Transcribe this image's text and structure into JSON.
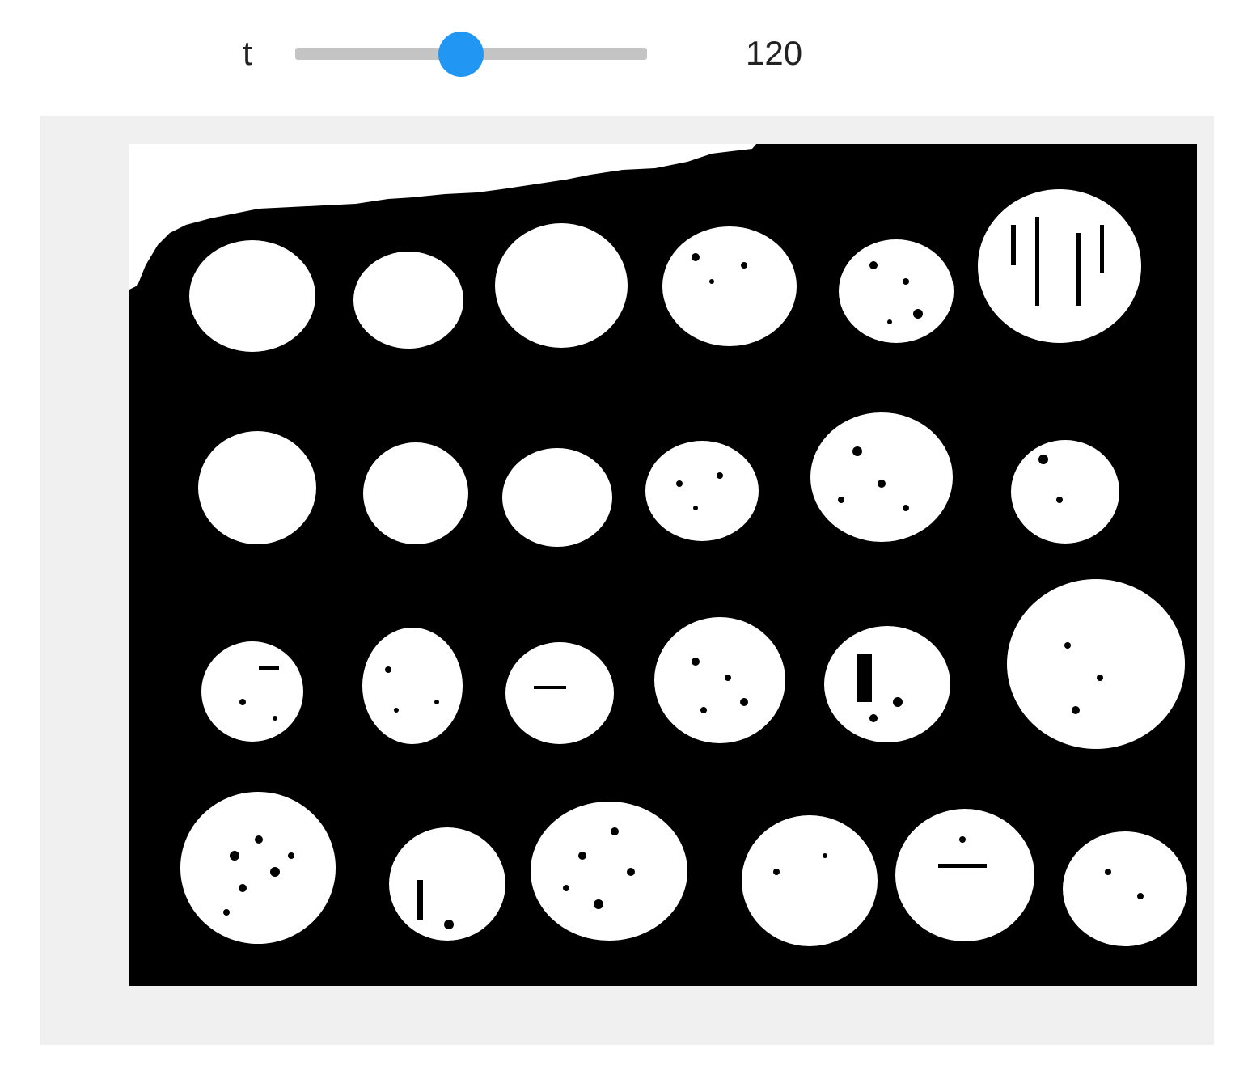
{
  "slider": {
    "label": "t",
    "value": "120",
    "min": 0,
    "max": 255,
    "accent_color": "#2196f3",
    "track_color": "#c4c4c4"
  },
  "output": {
    "background_color": "#f0f0f0",
    "image_foreground": "#ffffff",
    "image_background": "#000000"
  }
}
